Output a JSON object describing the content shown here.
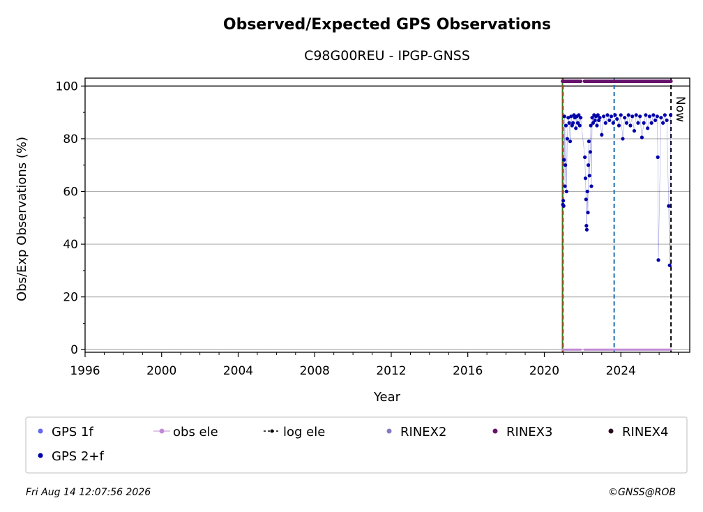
{
  "chart_data": {
    "type": "scatter",
    "title": "Observed/Expected GPS Observations",
    "subtitle": "C98G00REU - IPGP-GNSS",
    "xlabel": "Year",
    "ylabel": "Obs/Exp Observations (%)",
    "xlim": [
      1996,
      2027.6
    ],
    "ylim": [
      -1,
      103
    ],
    "x_ticks": [
      "1996",
      "2000",
      "2004",
      "2008",
      "2012",
      "2016",
      "2020",
      "2024"
    ],
    "y_ticks": [
      "0",
      "20",
      "40",
      "60",
      "80",
      "100"
    ],
    "grid": "horizontal",
    "reference_line_y": 100,
    "vertical_lines": [
      {
        "x": 2020.95,
        "style": "solid",
        "color": "#2e7d1e"
      },
      {
        "x": 2020.98,
        "style": "dashed",
        "color": "#c0392b"
      },
      {
        "x": 2023.65,
        "style": "dashed",
        "color": "#1f6fb2"
      },
      {
        "x": 2026.62,
        "style": "dashed",
        "color": "#000000",
        "label": "Now"
      }
    ],
    "series": [
      {
        "name": "GPS 1f",
        "marker": "dot",
        "color": "#6666ee",
        "values": []
      },
      {
        "name": "obs ele",
        "marker": "line-dot",
        "color": "#c28ad6",
        "y_constant": 0,
        "x_ranges": [
          [
            2020.95,
            2021.9
          ],
          [
            2022.1,
            2026.62
          ]
        ]
      },
      {
        "name": "log ele",
        "marker": "dashdot",
        "color": "#000000",
        "values": []
      },
      {
        "name": "RINEX2",
        "marker": "dot",
        "color": "#8878c0",
        "values": []
      },
      {
        "name": "RINEX3",
        "marker": "dot",
        "color": "#66116b",
        "y_constant": 101.8,
        "x_ranges": [
          [
            2020.95,
            2021.9
          ],
          [
            2022.1,
            2026.62
          ]
        ]
      },
      {
        "name": "RINEX4",
        "marker": "dot",
        "color": "#2b0a22",
        "values": []
      },
      {
        "name": "GPS 2+f",
        "marker": "dot",
        "color": "#0000aa",
        "points": [
          [
            2020.97,
            55
          ],
          [
            2020.99,
            56.5
          ],
          [
            2021.01,
            54.5
          ],
          [
            2021.03,
            72
          ],
          [
            2021.05,
            88.5
          ],
          [
            2021.08,
            62
          ],
          [
            2021.1,
            70
          ],
          [
            2021.13,
            85
          ],
          [
            2021.16,
            60
          ],
          [
            2021.2,
            80
          ],
          [
            2021.25,
            88
          ],
          [
            2021.3,
            86
          ],
          [
            2021.35,
            79
          ],
          [
            2021.4,
            88.5
          ],
          [
            2021.45,
            85
          ],
          [
            2021.5,
            86
          ],
          [
            2021.55,
            89
          ],
          [
            2021.6,
            88
          ],
          [
            2021.65,
            84
          ],
          [
            2021.7,
            88.5
          ],
          [
            2021.75,
            86
          ],
          [
            2021.8,
            89
          ],
          [
            2021.85,
            85
          ],
          [
            2021.9,
            88
          ],
          [
            2022.12,
            73
          ],
          [
            2022.15,
            65
          ],
          [
            2022.18,
            57
          ],
          [
            2022.2,
            47
          ],
          [
            2022.22,
            45.5
          ],
          [
            2022.25,
            60
          ],
          [
            2022.28,
            52
          ],
          [
            2022.3,
            70
          ],
          [
            2022.33,
            79
          ],
          [
            2022.36,
            66
          ],
          [
            2022.4,
            75
          ],
          [
            2022.43,
            85
          ],
          [
            2022.46,
            62
          ],
          [
            2022.5,
            88
          ],
          [
            2022.55,
            86
          ],
          [
            2022.6,
            89
          ],
          [
            2022.65,
            87
          ],
          [
            2022.7,
            88.5
          ],
          [
            2022.75,
            85
          ],
          [
            2022.8,
            89
          ],
          [
            2022.85,
            87
          ],
          [
            2022.9,
            88
          ],
          [
            2023.0,
            81.5
          ],
          [
            2023.1,
            88.5
          ],
          [
            2023.2,
            86
          ],
          [
            2023.3,
            89
          ],
          [
            2023.4,
            87
          ],
          [
            2023.5,
            88.5
          ],
          [
            2023.6,
            86
          ],
          [
            2023.7,
            89
          ],
          [
            2023.8,
            87.5
          ],
          [
            2023.9,
            85
          ],
          [
            2024.0,
            89
          ],
          [
            2024.1,
            80
          ],
          [
            2024.2,
            88
          ],
          [
            2024.3,
            86
          ],
          [
            2024.4,
            89
          ],
          [
            2024.5,
            85
          ],
          [
            2024.6,
            88.5
          ],
          [
            2024.7,
            83
          ],
          [
            2024.8,
            89
          ],
          [
            2024.9,
            86
          ],
          [
            2025.0,
            88.5
          ],
          [
            2025.1,
            80.5
          ],
          [
            2025.2,
            86
          ],
          [
            2025.3,
            89
          ],
          [
            2025.4,
            84
          ],
          [
            2025.5,
            88.5
          ],
          [
            2025.6,
            86
          ],
          [
            2025.7,
            89
          ],
          [
            2025.8,
            87
          ],
          [
            2025.9,
            88.5
          ],
          [
            2025.93,
            73
          ],
          [
            2025.96,
            34
          ],
          [
            2026.1,
            88
          ],
          [
            2026.2,
            86
          ],
          [
            2026.3,
            89
          ],
          [
            2026.4,
            87
          ],
          [
            2026.5,
            54.5
          ],
          [
            2026.55,
            32
          ],
          [
            2026.6,
            89
          ]
        ]
      }
    ],
    "annotation": "Now",
    "legend_placement": "below-plot",
    "colors": {
      "grid": "#b0b0b0",
      "legend_border": "#cccccc"
    }
  },
  "footer": {
    "timestamp": "Fri Aug 14 12:07:56 2026",
    "credit": "©GNSS@ROB"
  }
}
